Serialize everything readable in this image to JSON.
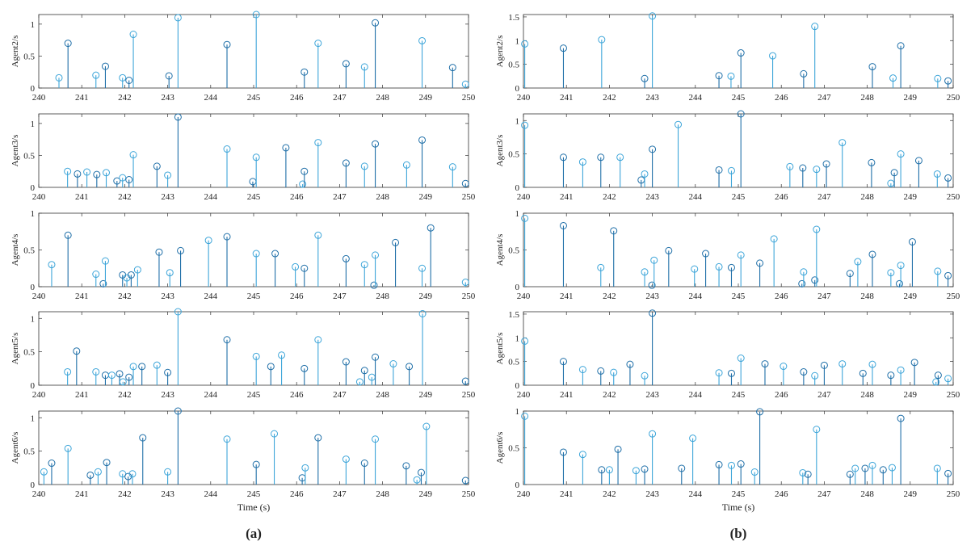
{
  "chart_data": [
    {
      "type": "stem",
      "panel": "a",
      "xlim": [
        240,
        250
      ],
      "xticks": [
        240,
        241,
        242,
        243,
        244,
        245,
        246,
        247,
        248,
        249,
        250
      ],
      "xlabel": "Time (s)",
      "caption": "(a)",
      "subplots": [
        {
          "ylabel": "Agent2/s",
          "ylim": [
            0,
            1.15
          ],
          "yticks": [
            0,
            0.5,
            1
          ],
          "ytick_labels": [
            "0",
            "0.5",
            "1"
          ],
          "x": [
            240.47,
            240.68,
            241.33,
            241.55,
            241.95,
            242.1,
            242.2,
            243.03,
            243.24,
            244.38,
            245.06,
            246.18,
            246.5,
            247.15,
            247.58,
            247.83,
            248.92,
            249.63,
            249.93
          ],
          "y": [
            0.16,
            0.7,
            0.2,
            0.34,
            0.16,
            0.12,
            0.84,
            0.19,
            1.1,
            0.68,
            1.15,
            0.25,
            0.7,
            0.38,
            0.33,
            1.02,
            0.74,
            0.32,
            0.06
          ]
        },
        {
          "ylabel": "Agent3/s",
          "ylim": [
            0,
            1.15
          ],
          "yticks": [
            0,
            0.5,
            1
          ],
          "ytick_labels": [
            "0",
            "0.5",
            "1"
          ],
          "x": [
            240.67,
            240.9,
            241.12,
            241.35,
            241.57,
            241.82,
            241.95,
            242.1,
            242.2,
            242.75,
            243.0,
            243.24,
            244.38,
            244.98,
            245.06,
            245.75,
            246.14,
            246.18,
            246.5,
            247.15,
            247.58,
            247.83,
            248.56,
            248.92,
            249.63,
            249.93
          ],
          "y": [
            0.25,
            0.21,
            0.24,
            0.2,
            0.23,
            0.1,
            0.15,
            0.12,
            0.51,
            0.33,
            0.19,
            1.1,
            0.6,
            0.09,
            0.47,
            0.62,
            0.05,
            0.25,
            0.7,
            0.38,
            0.33,
            0.68,
            0.35,
            0.74,
            0.32,
            0.06
          ]
        },
        {
          "ylabel": "Agent4/s",
          "ylim": [
            0,
            1
          ],
          "yticks": [
            0,
            0.5,
            1
          ],
          "ytick_labels": [
            "0",
            "0.5",
            "1"
          ],
          "x": [
            240.3,
            240.68,
            241.33,
            241.5,
            241.55,
            241.95,
            242.05,
            242.15,
            242.3,
            242.8,
            243.05,
            243.3,
            243.95,
            244.38,
            245.06,
            245.5,
            245.97,
            246.18,
            246.5,
            247.15,
            247.58,
            247.8,
            247.83,
            248.3,
            248.92,
            249.12,
            249.93
          ],
          "y": [
            0.3,
            0.7,
            0.17,
            0.04,
            0.35,
            0.16,
            0.12,
            0.16,
            0.23,
            0.47,
            0.19,
            0.49,
            0.63,
            0.68,
            0.45,
            0.45,
            0.27,
            0.25,
            0.7,
            0.38,
            0.3,
            0.02,
            0.43,
            0.6,
            0.25,
            0.8,
            0.06
          ]
        },
        {
          "ylabel": "Agent5/s",
          "ylim": [
            0,
            1.1
          ],
          "yticks": [
            0,
            0.5,
            1
          ],
          "ytick_labels": [
            "0",
            "0.5",
            "1"
          ],
          "x": [
            240.67,
            240.88,
            241.33,
            241.55,
            241.7,
            241.88,
            241.96,
            242.1,
            242.2,
            242.4,
            242.75,
            243.0,
            243.24,
            244.38,
            245.06,
            245.4,
            245.65,
            246.18,
            246.5,
            247.15,
            247.47,
            247.58,
            247.75,
            247.83,
            248.25,
            248.62,
            248.93,
            249.93
          ],
          "y": [
            0.2,
            0.51,
            0.2,
            0.15,
            0.15,
            0.17,
            0.05,
            0.12,
            0.28,
            0.28,
            0.3,
            0.19,
            1.1,
            0.68,
            0.43,
            0.28,
            0.45,
            0.25,
            0.68,
            0.35,
            0.05,
            0.22,
            0.12,
            0.42,
            0.32,
            0.28,
            1.07,
            0.06
          ]
        },
        {
          "ylabel": "Agent6/s",
          "ylim": [
            0,
            1.1
          ],
          "yticks": [
            0,
            0.5,
            1
          ],
          "ytick_labels": [
            "0",
            "0.5",
            "1"
          ],
          "x": [
            240.12,
            240.3,
            240.68,
            241.2,
            241.38,
            241.58,
            241.95,
            242.08,
            242.18,
            242.42,
            243.0,
            243.24,
            244.38,
            245.06,
            245.48,
            246.13,
            246.2,
            246.5,
            247.15,
            247.58,
            247.83,
            248.55,
            248.8,
            248.9,
            249.02,
            249.93
          ],
          "y": [
            0.19,
            0.32,
            0.54,
            0.14,
            0.19,
            0.33,
            0.16,
            0.12,
            0.16,
            0.7,
            0.19,
            1.1,
            0.68,
            0.3,
            0.76,
            0.1,
            0.25,
            0.7,
            0.38,
            0.32,
            0.68,
            0.28,
            0.07,
            0.18,
            0.87,
            0.06
          ]
        }
      ]
    },
    {
      "type": "stem",
      "panel": "b",
      "xlim": [
        240,
        250
      ],
      "xticks": [
        240,
        241,
        242,
        243,
        244,
        245,
        246,
        247,
        248,
        249,
        250
      ],
      "xlabel": "Time (s)",
      "caption": "(b)",
      "subplots": [
        {
          "ylabel": "Agent2/s",
          "ylim": [
            0,
            1.55
          ],
          "yticks": [
            0,
            0.5,
            1,
            1.5
          ],
          "ytick_labels": [
            "0",
            "0.5",
            "1",
            "1.5"
          ],
          "x": [
            240.03,
            240.93,
            241.82,
            242.82,
            243.0,
            244.55,
            244.83,
            245.06,
            245.8,
            246.52,
            246.78,
            248.12,
            248.6,
            248.78,
            249.64,
            249.88
          ],
          "y": [
            0.93,
            0.84,
            1.02,
            0.2,
            1.52,
            0.26,
            0.25,
            0.74,
            0.68,
            0.3,
            1.3,
            0.45,
            0.21,
            0.89,
            0.2,
            0.15
          ]
        },
        {
          "ylabel": "Agent3/s",
          "ylim": [
            0,
            1.1
          ],
          "yticks": [
            0,
            0.5,
            1
          ],
          "ytick_labels": [
            "0",
            "0.5",
            "1"
          ],
          "x": [
            240.03,
            240.93,
            241.38,
            241.8,
            242.25,
            242.74,
            242.82,
            243.0,
            243.6,
            244.55,
            244.84,
            245.06,
            246.2,
            246.5,
            246.82,
            247.05,
            247.42,
            248.1,
            248.55,
            248.63,
            248.78,
            249.2,
            249.63,
            249.88
          ],
          "y": [
            0.93,
            0.45,
            0.38,
            0.45,
            0.45,
            0.11,
            0.2,
            0.57,
            0.94,
            0.26,
            0.25,
            1.1,
            0.31,
            0.29,
            0.27,
            0.35,
            0.67,
            0.37,
            0.06,
            0.22,
            0.5,
            0.4,
            0.2,
            0.14
          ]
        },
        {
          "ylabel": "Agent4/s",
          "ylim": [
            0,
            1
          ],
          "yticks": [
            0,
            0.5,
            1
          ],
          "ytick_labels": [
            "0",
            "0.5",
            "1"
          ],
          "x": [
            240.03,
            240.93,
            241.8,
            242.1,
            242.82,
            242.99,
            243.04,
            243.38,
            243.98,
            244.24,
            244.55,
            244.84,
            245.06,
            245.5,
            245.83,
            246.48,
            246.52,
            246.78,
            246.82,
            247.6,
            247.78,
            248.12,
            248.55,
            248.75,
            248.78,
            249.05,
            249.64,
            249.88
          ],
          "y": [
            0.93,
            0.83,
            0.26,
            0.76,
            0.2,
            0.02,
            0.36,
            0.49,
            0.24,
            0.45,
            0.27,
            0.26,
            0.43,
            0.32,
            0.65,
            0.04,
            0.2,
            0.09,
            0.78,
            0.18,
            0.34,
            0.44,
            0.19,
            0.04,
            0.29,
            0.61,
            0.21,
            0.15
          ]
        },
        {
          "ylabel": "Agent5/s",
          "ylim": [
            0,
            1.55
          ],
          "yticks": [
            0,
            0.5,
            1,
            1.5
          ],
          "ytick_labels": [
            "0",
            "0.5",
            "1",
            "1.5"
          ],
          "x": [
            240.03,
            240.93,
            241.38,
            241.8,
            242.1,
            242.48,
            242.82,
            243.0,
            244.55,
            244.84,
            245.06,
            245.62,
            246.05,
            246.52,
            246.78,
            247.0,
            247.42,
            247.9,
            248.12,
            248.55,
            248.78,
            249.1,
            249.6,
            249.65,
            249.88
          ],
          "y": [
            0.93,
            0.5,
            0.33,
            0.3,
            0.27,
            0.44,
            0.2,
            1.52,
            0.26,
            0.25,
            0.57,
            0.45,
            0.4,
            0.28,
            0.2,
            0.42,
            0.45,
            0.25,
            0.44,
            0.21,
            0.32,
            0.48,
            0.07,
            0.21,
            0.14
          ]
        },
        {
          "ylabel": "Agent6/s",
          "ylim": [
            0,
            1
          ],
          "yticks": [
            0,
            0.5,
            1
          ],
          "ytick_labels": [
            "0",
            "0.5",
            "1"
          ],
          "x": [
            240.03,
            240.93,
            241.38,
            241.82,
            242.0,
            242.2,
            242.62,
            242.82,
            243.0,
            243.68,
            243.94,
            244.55,
            244.84,
            245.06,
            245.38,
            245.5,
            246.5,
            246.62,
            246.82,
            247.6,
            247.72,
            247.95,
            248.12,
            248.37,
            248.58,
            248.78,
            249.63,
            249.88
          ],
          "y": [
            0.93,
            0.44,
            0.41,
            0.2,
            0.2,
            0.48,
            0.19,
            0.21,
            0.69,
            0.22,
            0.63,
            0.27,
            0.26,
            0.28,
            0.17,
            0.99,
            0.16,
            0.14,
            0.75,
            0.14,
            0.22,
            0.22,
            0.26,
            0.2,
            0.23,
            0.9,
            0.22,
            0.15
          ]
        }
      ]
    }
  ]
}
